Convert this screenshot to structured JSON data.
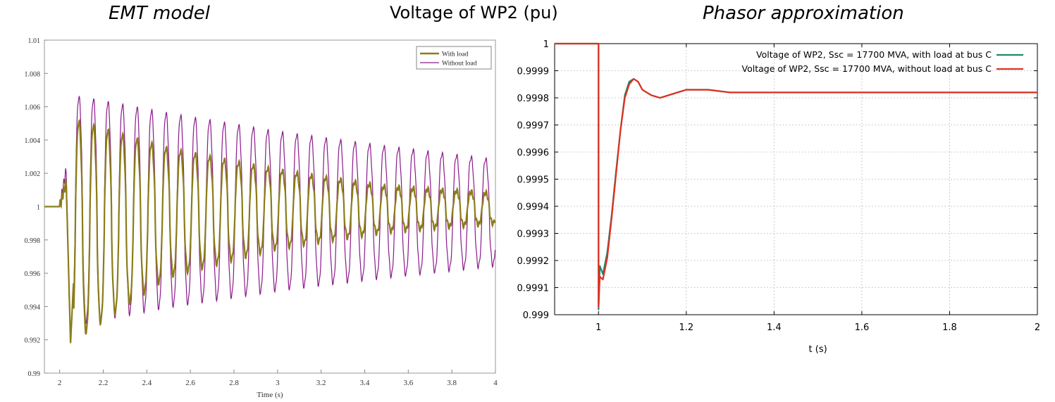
{
  "titles": {
    "left": "EMT model",
    "main": "Voltage of WP2 (pu)",
    "right": "Phasor approximation"
  },
  "chart_data": [
    {
      "type": "line",
      "title": "EMT model",
      "xlabel": "Time (s)",
      "ylabel": "",
      "xlim": [
        1.93,
        4.0
      ],
      "ylim": [
        0.99,
        1.01
      ],
      "x_ticks": [
        "2",
        "2.2",
        "2.4",
        "2.6",
        "2.8",
        "3",
        "3.2",
        "3.4",
        "3.6",
        "3.8",
        "4"
      ],
      "y_ticks": [
        "0.99",
        "0.992",
        "0.994",
        "0.996",
        "0.998",
        "1",
        "1.002",
        "1.004",
        "1.006",
        "1.008",
        "1.01"
      ],
      "grid": false,
      "legend_position": "top-right",
      "oscillation_frequency_hz": 15,
      "series": [
        {
          "name": "With load",
          "color": "#8a7d1a",
          "values_summary": "1.0 until 2.0 s; small rise to 1.0015 at 2.02 s; dip to 0.9918 at 2.05 s; oscillation ~15 Hz with amplitude decaying from ~0.0045 to ~0.001 around 1.0 by 4 s",
          "envelope": [
            [
              2.05,
              1.0053,
              0.9918
            ],
            [
              2.5,
              1.0035,
              0.9958
            ],
            [
              3.0,
              1.0022,
              0.9975
            ],
            [
              3.5,
              1.0012,
              0.9985
            ],
            [
              4.0,
              1.0008,
              0.999
            ]
          ]
        },
        {
          "name": "Without load",
          "color": "#8b1a8b",
          "values_summary": "1.0 until 2.0 s; rise to 1.0022 at 2.03 s; dip to 0.9918 at 2.05 s; oscillation ~15 Hz with amplitude decaying slowly, peaks 1.0066 -> 1.0028, troughs 0.9930 -> 0.9965 by 4 s",
          "envelope": [
            [
              2.1,
              1.0066,
              0.993
            ],
            [
              2.5,
              1.0056,
              0.994
            ],
            [
              3.0,
              1.0045,
              0.995
            ],
            [
              3.5,
              1.0036,
              0.9958
            ],
            [
              4.0,
              1.0028,
              0.9965
            ]
          ]
        }
      ]
    },
    {
      "type": "line",
      "title": "Phasor approximation",
      "xlabel": "t (s)",
      "ylabel": "",
      "xlim": [
        0.9,
        2.0
      ],
      "ylim": [
        0.999,
        1.0
      ],
      "x_ticks": [
        "1",
        "1.2",
        "1.4",
        "1.6",
        "1.8",
        "2"
      ],
      "y_ticks": [
        "0.999",
        "0.9991",
        "0.9992",
        "0.9993",
        "0.9994",
        "0.9995",
        "0.9996",
        "0.9997",
        "0.9998",
        "0.9999",
        "1"
      ],
      "grid": true,
      "legend_position": "top-right",
      "series": [
        {
          "name": "Voltage of WP2, Ssc = 17700 MVA, with load at bus C",
          "color": "#1a8a6a",
          "x": [
            0.9,
            0.999,
            1.0,
            1.0,
            1.003,
            1.01,
            1.02,
            1.03,
            1.04,
            1.05,
            1.06,
            1.07,
            1.08,
            1.09,
            1.1,
            1.12,
            1.14,
            1.16,
            1.18,
            1.2,
            1.22,
            1.25,
            1.3,
            1.4,
            2.0
          ],
          "y": [
            1.0,
            1.0,
            1.0,
            0.99902,
            0.99918,
            0.99915,
            0.99923,
            0.99937,
            0.99953,
            0.99968,
            0.99981,
            0.99986,
            0.99987,
            0.99986,
            0.99983,
            0.99981,
            0.9998,
            0.99981,
            0.99982,
            0.99983,
            0.99983,
            0.99983,
            0.99982,
            0.99982,
            0.99982
          ]
        },
        {
          "name": "Voltage of WP2, Ssc = 17700 MVA, without load at bus C",
          "color": "#e03020",
          "x": [
            0.9,
            0.999,
            1.0,
            1.0,
            1.003,
            1.01,
            1.02,
            1.03,
            1.04,
            1.05,
            1.06,
            1.07,
            1.08,
            1.09,
            1.1,
            1.12,
            1.14,
            1.16,
            1.18,
            1.2,
            1.22,
            1.25,
            1.3,
            1.4,
            2.0
          ],
          "y": [
            1.0,
            1.0,
            1.0,
            0.99903,
            0.99914,
            0.99913,
            0.99921,
            0.99936,
            0.99952,
            0.99968,
            0.9998,
            0.99985,
            0.99987,
            0.99986,
            0.99983,
            0.99981,
            0.9998,
            0.99981,
            0.99982,
            0.99983,
            0.99983,
            0.99983,
            0.99982,
            0.99982,
            0.99982
          ]
        }
      ]
    }
  ]
}
